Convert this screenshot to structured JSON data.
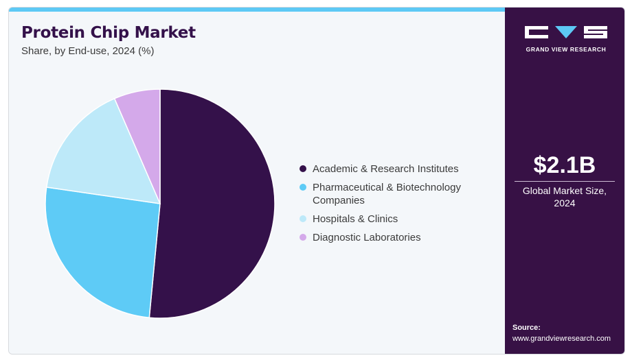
{
  "header": {
    "title": "Protein Chip Market",
    "subtitle": "Share, by End-use, 2024 (%)"
  },
  "chart_data": {
    "type": "pie",
    "title": "Protein Chip Market",
    "subtitle": "Share, by End-use, 2024 (%)",
    "categories": [
      "Academic & Research Institutes",
      "Pharmaceutical & Biotechnology Companies",
      "Hospitals & Clinics",
      "Diagnostic Laboratories"
    ],
    "values": [
      51.5,
      25.8,
      16.2,
      6.5
    ],
    "colors": [
      "#34114a",
      "#5ecbf6",
      "#bde9f9",
      "#d4a9ea"
    ],
    "legend_position": "right",
    "legend_labels": [
      [
        "Academic & Research Institutes"
      ],
      [
        "Pharmaceutical & Biotechnology",
        "Companies"
      ],
      [
        "Hospitals & Clinics"
      ],
      [
        "Diagnostic Laboratories"
      ]
    ]
  },
  "sidebar": {
    "logo_text": "GRAND VIEW RESEARCH",
    "market_value": "$2.1B",
    "market_caption_line1": "Global Market Size,",
    "market_caption_line2": "2024",
    "source_label": "Source:",
    "source_url": "www.grandviewresearch.com"
  },
  "colors": {
    "panel_bg": "#371145",
    "accent_bar": "#5dc9f5",
    "chart_bg": "#f4f7fa"
  }
}
